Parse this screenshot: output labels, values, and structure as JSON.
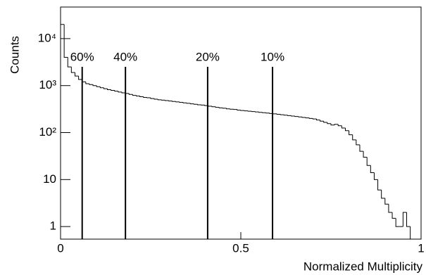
{
  "chart_data": {
    "type": "histogram",
    "x_label": "Normalized Multiplicity",
    "y_label": "Counts",
    "log_y": true,
    "color": "#000000",
    "xlim": [
      0,
      1
    ],
    "xticks": [
      0,
      0.5,
      1
    ],
    "ylim": [
      0.54,
      47000
    ],
    "yticks": [
      1,
      10,
      {
        "value": 100,
        "label": "10²"
      },
      {
        "value": 1000,
        "label": "10³"
      },
      {
        "value": 10000,
        "label": "10⁴"
      }
    ],
    "bins": [
      0,
      0.01,
      0.02,
      0.03,
      0.04,
      0.05,
      0.06,
      0.07,
      0.08,
      0.09,
      0.1,
      0.11,
      0.12,
      0.13,
      0.14,
      0.15,
      0.16,
      0.17,
      0.18,
      0.19,
      0.2,
      0.21,
      0.22,
      0.23,
      0.24,
      0.25,
      0.26,
      0.27,
      0.28,
      0.29,
      0.3,
      0.31,
      0.32,
      0.33,
      0.34,
      0.35,
      0.36,
      0.37,
      0.38,
      0.39,
      0.4,
      0.41,
      0.42,
      0.43,
      0.44,
      0.45,
      0.46,
      0.47,
      0.48,
      0.49,
      0.5,
      0.51,
      0.52,
      0.53,
      0.54,
      0.55,
      0.56,
      0.57,
      0.58,
      0.59,
      0.6,
      0.61,
      0.62,
      0.63,
      0.64,
      0.65,
      0.66,
      0.67,
      0.68,
      0.69,
      0.7,
      0.71,
      0.72,
      0.73,
      0.74,
      0.75,
      0.76,
      0.77,
      0.78,
      0.79,
      0.8,
      0.81,
      0.82,
      0.83,
      0.84,
      0.85,
      0.86,
      0.87,
      0.88,
      0.89,
      0.9,
      0.91,
      0.92,
      0.93,
      0.94,
      0.95,
      0.96,
      0.97,
      0.98,
      0.99,
      1
    ],
    "values": [
      20000,
      4000,
      2500,
      1900,
      1600,
      1350,
      1200,
      1100,
      1050,
      1000,
      950,
      900,
      860,
      820,
      790,
      760,
      730,
      700,
      680,
      650,
      620,
      600,
      580,
      560,
      550,
      530,
      515,
      500,
      490,
      480,
      470,
      460,
      450,
      440,
      430,
      420,
      410,
      400,
      390,
      385,
      375,
      365,
      355,
      345,
      335,
      330,
      320,
      315,
      310,
      300,
      295,
      290,
      285,
      280,
      275,
      270,
      265,
      260,
      255,
      250,
      245,
      240,
      235,
      230,
      225,
      220,
      215,
      210,
      205,
      200,
      195,
      185,
      175,
      165,
      155,
      145,
      150,
      140,
      125,
      110,
      90,
      70,
      55,
      40,
      30,
      20,
      14,
      10,
      6,
      4,
      3,
      2,
      1.5,
      1,
      1,
      2,
      1,
      0,
      0,
      0
    ],
    "annotations": [
      {
        "label": "60%",
        "x": 0.06
      },
      {
        "label": "40%",
        "x": 0.18
      },
      {
        "label": "20%",
        "x": 0.408
      },
      {
        "label": "10%",
        "x": 0.588
      }
    ]
  }
}
